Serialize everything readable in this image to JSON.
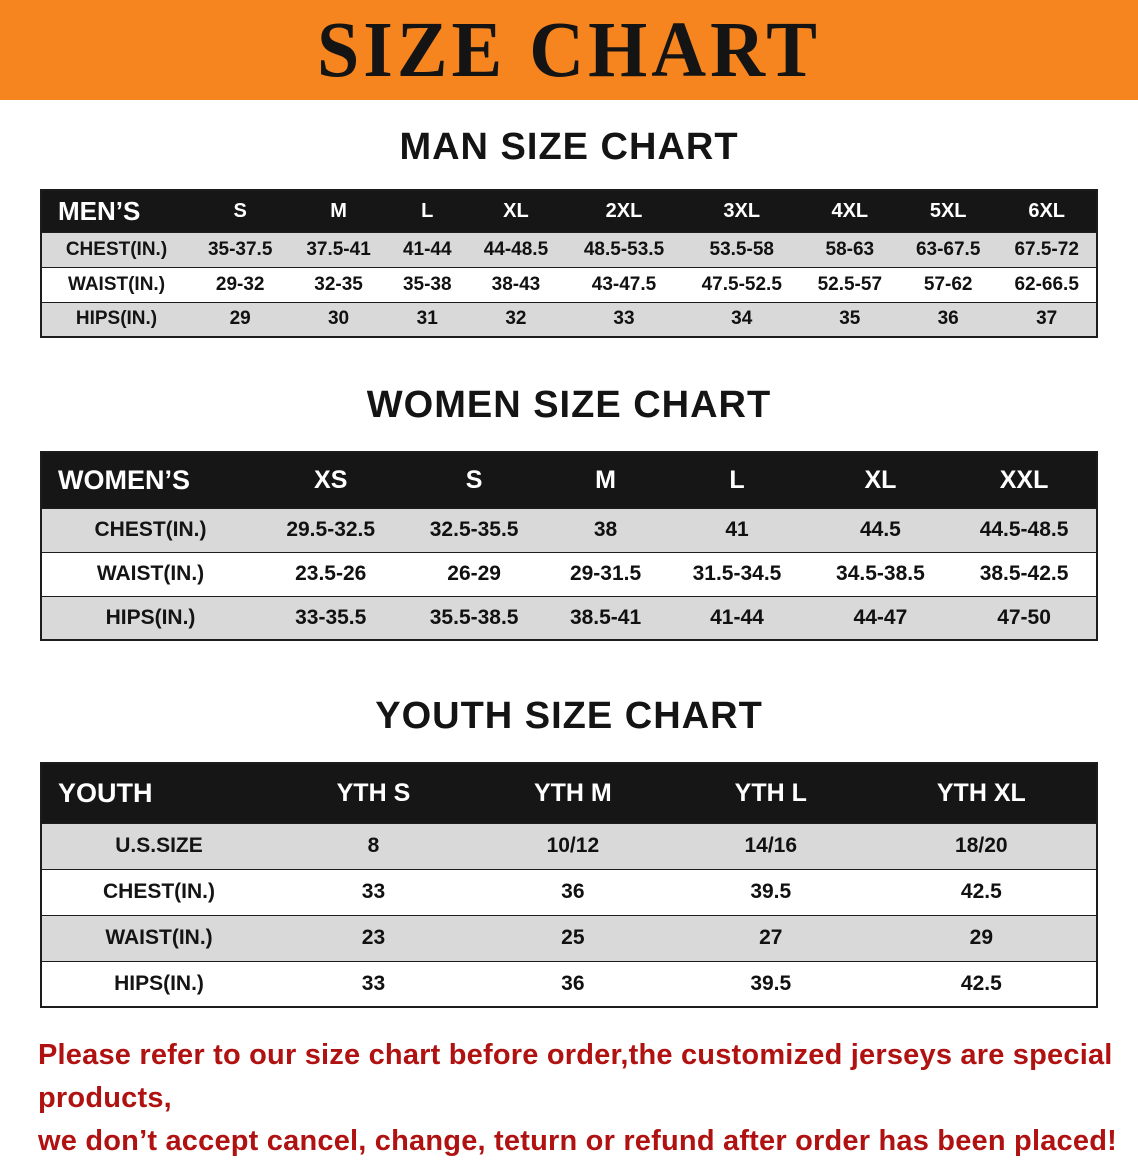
{
  "banner": {
    "title": "SIZE CHART",
    "bg_color": "#f6851f",
    "text_color": "#141414"
  },
  "sections": {
    "men": {
      "heading": "MAN SIZE CHART",
      "table": {
        "header": [
          "MEN’S",
          "S",
          "M",
          "L",
          "XL",
          "2XL",
          "3XL",
          "4XL",
          "5XL",
          "6XL"
        ],
        "rows": [
          [
            "CHEST(IN.)",
            "35-37.5",
            "37.5-41",
            "41-44",
            "44-48.5",
            "48.5-53.5",
            "53.5-58",
            "58-63",
            "63-67.5",
            "67.5-72"
          ],
          [
            "WAIST(IN.)",
            "29-32",
            "32-35",
            "35-38",
            "38-43",
            "43-47.5",
            "47.5-52.5",
            "52.5-57",
            "57-62",
            "62-66.5"
          ],
          [
            "HIPS(IN.)",
            "29",
            "30",
            "31",
            "32",
            "33",
            "34",
            "35",
            "36",
            "37"
          ]
        ]
      }
    },
    "women": {
      "heading": "WOMEN SIZE CHART",
      "table": {
        "header": [
          "WOMEN’S",
          "XS",
          "S",
          "M",
          "L",
          "XL",
          "XXL"
        ],
        "rows": [
          [
            "CHEST(IN.)",
            "29.5-32.5",
            "32.5-35.5",
            "38",
            "41",
            "44.5",
            "44.5-48.5"
          ],
          [
            "WAIST(IN.)",
            "23.5-26",
            "26-29",
            "29-31.5",
            "31.5-34.5",
            "34.5-38.5",
            "38.5-42.5"
          ],
          [
            "HIPS(IN.)",
            "33-35.5",
            "35.5-38.5",
            "38.5-41",
            "41-44",
            "44-47",
            "47-50"
          ]
        ]
      }
    },
    "youth": {
      "heading": "YOUTH SIZE CHART",
      "table": {
        "header": [
          "YOUTH",
          "YTH S",
          "YTH M",
          "YTH L",
          "YTH XL"
        ],
        "rows": [
          [
            "U.S.SIZE",
            "8",
            "10/12",
            "14/16",
            "18/20"
          ],
          [
            "CHEST(IN.)",
            "33",
            "36",
            "39.5",
            "42.5"
          ],
          [
            "WAIST(IN.)",
            "23",
            "25",
            "27",
            "29"
          ],
          [
            "HIPS(IN.)",
            "33",
            "36",
            "39.5",
            "42.5"
          ]
        ]
      }
    }
  },
  "disclaimer": {
    "line1": "Please refer to our size chart before order,the customized jerseys are special products,",
    "line2": "we don’t accept cancel, change, teturn or refund after order has been placed!",
    "text_color": "#b01212"
  }
}
